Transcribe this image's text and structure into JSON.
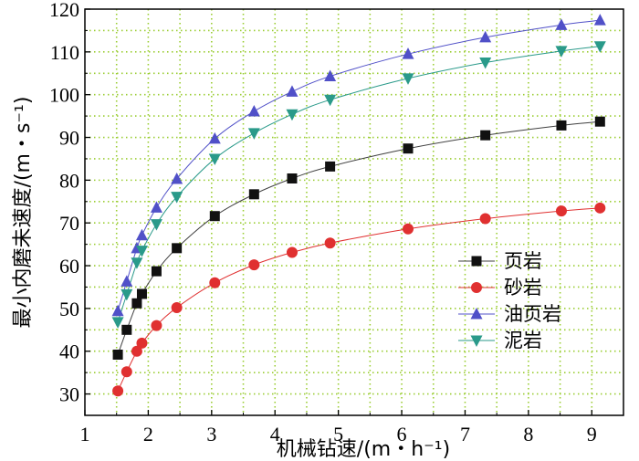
{
  "chart_data": {
    "type": "scatter",
    "xlabel": "机械钻速/(m・h⁻¹)",
    "ylabel": "最小内磨未速度/(m・s⁻¹)",
    "xlim": [
      1,
      9.5
    ],
    "ylim": [
      25,
      120
    ],
    "xticks": [
      1,
      2,
      3,
      4,
      5,
      6,
      7,
      8,
      9
    ],
    "yticks": [
      30,
      40,
      50,
      60,
      70,
      80,
      90,
      100,
      110,
      120
    ],
    "grid": "dotted",
    "legend_position": "right-middle",
    "series": [
      {
        "name": "页岩",
        "color": "#404040",
        "marker": "square",
        "x": [
          1.52,
          1.66,
          1.82,
          1.9,
          2.13,
          2.45,
          3.05,
          3.67,
          4.27,
          4.87,
          6.1,
          7.32,
          8.52,
          9.13
        ],
        "y": [
          39.2,
          45.0,
          51.2,
          53.4,
          58.7,
          64.1,
          71.6,
          76.7,
          80.4,
          83.2,
          87.4,
          90.5,
          92.8,
          93.7
        ]
      },
      {
        "name": "砂岩",
        "color": "#e03030",
        "marker": "circle",
        "x": [
          1.52,
          1.66,
          1.82,
          1.9,
          2.13,
          2.45,
          3.05,
          3.67,
          4.27,
          4.87,
          6.1,
          7.32,
          8.52,
          9.13
        ],
        "y": [
          30.7,
          35.2,
          40.0,
          41.9,
          46.0,
          50.2,
          56.0,
          60.2,
          63.1,
          65.3,
          68.6,
          71.0,
          72.8,
          73.5
        ]
      },
      {
        "name": "油页岩",
        "color": "#5050c8",
        "marker": "triangle-up",
        "x": [
          1.52,
          1.66,
          1.82,
          1.9,
          2.13,
          2.45,
          3.05,
          3.67,
          4.27,
          4.87,
          6.1,
          7.32,
          8.52,
          9.13
        ],
        "y": [
          49.4,
          56.3,
          64.1,
          67.1,
          73.6,
          80.3,
          89.7,
          96.1,
          100.7,
          104.3,
          109.5,
          113.4,
          116.3,
          117.4
        ]
      },
      {
        "name": "泥岩",
        "color": "#2a9a8a",
        "marker": "triangle-down",
        "x": [
          1.52,
          1.66,
          1.82,
          1.9,
          2.13,
          2.45,
          3.05,
          3.67,
          4.27,
          4.87,
          6.1,
          7.32,
          8.52,
          9.13
        ],
        "y": [
          46.8,
          53.3,
          60.7,
          63.5,
          69.7,
          76.1,
          85.0,
          91.0,
          95.4,
          98.8,
          103.8,
          107.5,
          110.2,
          111.3
        ]
      }
    ]
  }
}
